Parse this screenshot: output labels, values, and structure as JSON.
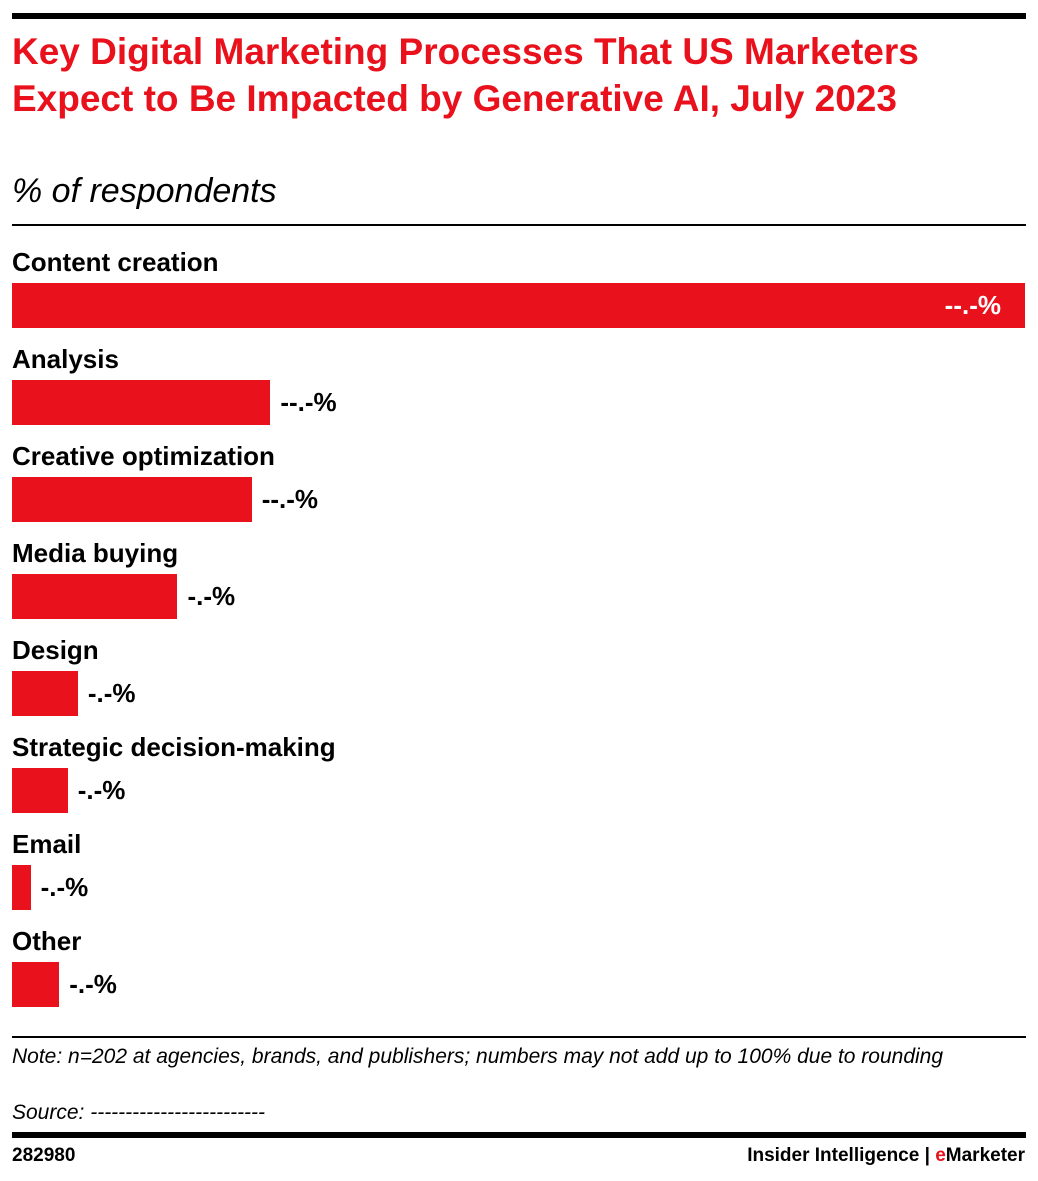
{
  "chart_data": {
    "type": "bar",
    "orientation": "horizontal",
    "title": "Key Digital Marketing Processes That US Marketers Expect to Be Impacted by Generative AI, July 2023",
    "subtitle": "% of respondents",
    "categories": [
      "Content creation",
      "Analysis",
      "Creative optimization",
      "Media buying",
      "Design",
      "Strategic decision-making",
      "Email",
      "Other"
    ],
    "values": [
      60.0,
      15.3,
      14.2,
      9.8,
      3.9,
      3.3,
      1.1,
      2.8
    ],
    "value_labels": [
      "--.-%",
      "--.-%",
      "--.-%",
      "-.-%",
      "-.-%",
      "-.-%",
      "-.-%",
      "-.-%"
    ],
    "color": "#e8111c",
    "note": "Note: n=202 at agencies, brands, and publishers; numbers may not add up to 100% due to rounding",
    "source": "Source: -------------------------"
  },
  "footer": {
    "id": "282980",
    "brand": "Insider Intelligence",
    "separator": "|",
    "brand_e": "e",
    "brand_rest": "Marketer"
  }
}
